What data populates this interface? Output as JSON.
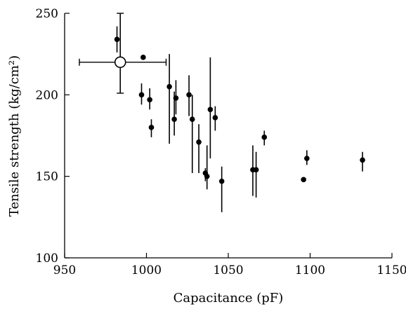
{
  "chart_data": {
    "type": "scatter",
    "xlabel": "Capacitance (pF)",
    "ylabel": "Tensile strength (kg/cm²)",
    "xlim": [
      950,
      1150
    ],
    "ylim": [
      100,
      250
    ],
    "xticks": [
      950,
      1000,
      1050,
      1100,
      1150
    ],
    "yticks": [
      100,
      150,
      200,
      250
    ],
    "x_tick_labels": [
      "950",
      "1000",
      "1050",
      "1100",
      "1150"
    ],
    "y_tick_labels": [
      "100",
      "150",
      "200",
      "250"
    ],
    "grid": false,
    "series": [
      {
        "marker": "filled-circle",
        "points": [
          {
            "x": 982,
            "y": 234,
            "ylo": 226,
            "yhi": 242
          },
          {
            "x": 998,
            "y": 223,
            "ylo": 223,
            "yhi": 223
          },
          {
            "x": 997,
            "y": 200,
            "ylo": 194,
            "yhi": 207
          },
          {
            "x": 1002,
            "y": 197,
            "ylo": 191,
            "yhi": 204
          },
          {
            "x": 1003,
            "y": 180,
            "ylo": 174,
            "yhi": 185
          },
          {
            "x": 1014,
            "y": 205,
            "ylo": 170,
            "yhi": 225
          },
          {
            "x": 1017,
            "y": 185,
            "ylo": 175,
            "yhi": 202
          },
          {
            "x": 1018,
            "y": 198,
            "ylo": 188,
            "yhi": 209
          },
          {
            "x": 1026,
            "y": 200,
            "ylo": 187,
            "yhi": 212
          },
          {
            "x": 1028,
            "y": 185,
            "ylo": 152,
            "yhi": 200
          },
          {
            "x": 1032,
            "y": 171,
            "ylo": 152,
            "yhi": 182
          },
          {
            "x": 1036,
            "y": 152,
            "ylo": 147,
            "yhi": 155
          },
          {
            "x": 1037,
            "y": 150,
            "ylo": 142,
            "yhi": 169
          },
          {
            "x": 1039,
            "y": 191,
            "ylo": 161,
            "yhi": 223
          },
          {
            "x": 1042,
            "y": 186,
            "ylo": 178,
            "yhi": 193
          },
          {
            "x": 1046,
            "y": 147,
            "ylo": 128,
            "yhi": 156
          },
          {
            "x": 1065,
            "y": 154,
            "ylo": 138,
            "yhi": 169
          },
          {
            "x": 1067,
            "y": 154,
            "ylo": 137,
            "yhi": 165
          },
          {
            "x": 1072,
            "y": 174,
            "ylo": 169,
            "yhi": 178
          },
          {
            "x": 1096,
            "y": 148,
            "ylo": 148,
            "yhi": 148
          },
          {
            "x": 1098,
            "y": 161,
            "ylo": 157,
            "yhi": 166
          },
          {
            "x": 1132,
            "y": 160,
            "ylo": 153,
            "yhi": 165
          }
        ]
      },
      {
        "marker": "open-circle",
        "points": [
          {
            "x": 984,
            "y": 220,
            "ylo": 201,
            "yhi": 250,
            "xlo": 959,
            "xhi": 1012
          }
        ]
      }
    ]
  }
}
